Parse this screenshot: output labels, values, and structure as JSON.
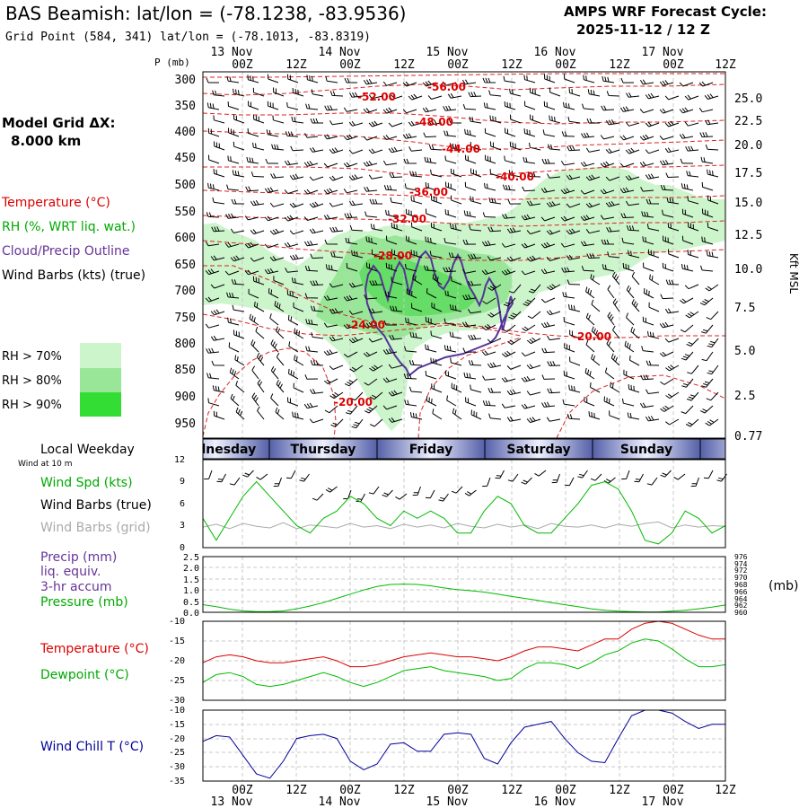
{
  "header": {
    "title": "BAS Beamish:  lat/lon = (-78.1238, -83.9536)",
    "grid_point": "Grid Point (584, 341) lat/lon = (-78.1013, -83.8319)",
    "cycle_label": "AMPS WRF Forecast Cycle:",
    "cycle_value": "2025-11-12 / 12  Z"
  },
  "sidebar": {
    "model_grid_label": "Model Grid ΔX:",
    "model_grid_value": "8.000 km",
    "temperature_label": "Temperature (°C)",
    "rh_label": "RH (%, WRT liq. wat.)",
    "cloud_label": "Cloud/Precip Outline",
    "wind_label": "Wind Barbs (kts) (true)",
    "rh70": "RH > 70%",
    "rh80": "RH > 80%",
    "rh90": "RH > 90%",
    "local_weekday": "Local Weekday",
    "wind_at_10m": "Wind at 10 m",
    "wind_spd": "Wind Spd (kts)",
    "wind_barbs_true": "Wind Barbs (true)",
    "wind_barbs_grid": "Wind Barbs (grid)",
    "precip": "Precip (mm)",
    "liq_equiv": "liq. equiv.",
    "accum": "3-hr accum",
    "pressure": "Pressure (mb)",
    "pressure_unit": "(mb)",
    "temperature2": "Temperature (°C)",
    "dewpoint": "Dewpoint (°C)",
    "windchill": "Wind Chill T (°C)"
  },
  "colors": {
    "temp": "#dd0000",
    "dew": "#00bb00",
    "rh70": "#ccf5cc",
    "rh80": "#99e699",
    "rh90": "#33dd33",
    "cloud": "#553399",
    "windchill": "#000099",
    "legend_purple": "#663399"
  },
  "chart_data": [
    {
      "type": "time-height cross-section",
      "p_axis_label": "P (mb)",
      "pressure_levels": [
        "300",
        "350",
        "400",
        "450",
        "500",
        "550",
        "600",
        "650",
        "700",
        "750",
        "800",
        "850",
        "900",
        "950"
      ],
      "height_label": "Kft MSL",
      "height_levels": [
        "25.0",
        "22.5",
        "20.0",
        "17.5",
        "15.0",
        "12.5",
        "10.0",
        "7.5",
        "5.0",
        "2.5",
        "0.77"
      ],
      "time_ticks": [
        "00Z",
        "12Z",
        "00Z",
        "12Z",
        "00Z",
        "12Z",
        "00Z",
        "12Z",
        "00Z",
        "12Z"
      ],
      "date_labels": [
        "13 Nov",
        "14 Nov",
        "15 Nov",
        "16 Nov",
        "17 Nov"
      ],
      "isotherm_labels": [
        "-56.00",
        "-52.00",
        "-48.00",
        "-44.00",
        "-40.00",
        "-36.00",
        "-32.00",
        "-28.00",
        "-24.00",
        "-20.00",
        "-20.00"
      ]
    },
    {
      "type": "weekday_bar",
      "days": [
        "Wednesday",
        "Thursday",
        "Friday",
        "Saturday",
        "Sunday"
      ]
    },
    {
      "type": "line",
      "title": "Wind Spd (kts)",
      "y_ticks": [
        "12",
        "9",
        "6",
        "3",
        "0"
      ],
      "ylim": [
        0,
        12
      ],
      "x_hours": [
        0,
        3,
        6,
        9,
        12,
        15,
        18,
        21,
        24,
        27,
        30,
        33,
        36,
        39,
        42,
        45,
        48,
        51,
        54,
        57,
        60,
        63,
        66,
        69,
        72,
        75,
        78,
        81,
        84,
        87,
        90,
        93,
        96,
        99,
        102,
        105,
        108,
        111,
        114,
        117
      ],
      "series": [
        {
          "name": "Wind Spd (kts)",
          "values": [
            4,
            1,
            4,
            7,
            9,
            7,
            5,
            3,
            2,
            4,
            5,
            7,
            6,
            4,
            3,
            5,
            4,
            5,
            4,
            2,
            2,
            5,
            7,
            6,
            3,
            2,
            2,
            4,
            6,
            8.5,
            9,
            8,
            5,
            1,
            0.5,
            2,
            5,
            4,
            2,
            3
          ]
        },
        {
          "name": "Wind Barbs (grid)",
          "values": [
            2.8,
            3.2,
            2.6,
            3.3,
            2.9,
            2.7,
            3.4,
            2.6,
            3.1,
            2.9,
            2.7,
            3.3,
            2.8,
            3,
            2.6,
            3.2,
            2.8,
            3.1,
            2.7,
            3.3,
            2.9,
            2.7,
            3.2,
            2.8,
            3.1,
            2.6,
            3.3,
            2.9,
            2.8,
            3.1,
            2.7,
            3.2,
            2.9,
            3.3,
            3.5,
            2.7,
            3.1,
            2.8,
            3,
            2.9
          ]
        }
      ]
    },
    {
      "type": "line",
      "title": "Precip / Pressure",
      "y_ticks": [
        "2.5",
        "2.0",
        "1.5",
        "1.0",
        "0.5",
        "0.0"
      ],
      "ylim": [
        0,
        2.5
      ],
      "right_ticks": [
        "976",
        "974",
        "972",
        "970",
        "968",
        "966",
        "964",
        "962",
        "960"
      ],
      "right_lim": [
        960,
        976
      ],
      "series": [
        {
          "name": "Precip (mm)",
          "values": [
            0,
            0,
            0,
            0,
            0,
            0,
            0,
            0,
            0,
            0,
            0,
            0,
            0,
            0,
            0,
            0,
            0,
            0,
            0,
            0,
            0,
            0,
            0,
            0,
            0,
            0,
            0,
            0,
            0,
            0,
            0,
            0,
            0,
            0,
            0,
            0,
            0,
            0,
            0,
            0
          ]
        },
        {
          "name": "Pressure (mb)",
          "values": [
            962.2,
            961.6,
            960.9,
            960.4,
            960.2,
            960.2,
            960.4,
            961.0,
            961.8,
            962.8,
            964.0,
            965.2,
            966.4,
            967.4,
            968.0,
            968.1,
            968.0,
            967.6,
            967.0,
            966.5,
            966.2,
            965.8,
            965.2,
            964.6,
            964.0,
            963.4,
            962.8,
            962.2,
            961.6,
            961.0,
            960.6,
            960.3,
            960.2,
            960.1,
            960.1,
            960.3,
            960.6,
            961.0,
            961.5,
            962.1
          ]
        }
      ]
    },
    {
      "type": "line",
      "title": "Temperature / Dewpoint",
      "y_ticks": [
        "-10",
        "-15",
        "-20",
        "-25",
        "-30"
      ],
      "ylim": [
        -30,
        -10
      ],
      "series": [
        {
          "name": "Temperature (°C)",
          "values": [
            -20.5,
            -19,
            -18.5,
            -19,
            -20,
            -20.5,
            -20.5,
            -20,
            -19.5,
            -19,
            -20,
            -21.5,
            -21.5,
            -21,
            -20,
            -19,
            -18.5,
            -18,
            -18.5,
            -19,
            -19,
            -19.5,
            -20,
            -19,
            -17.5,
            -16.5,
            -16.5,
            -17,
            -17.5,
            -16,
            -14.5,
            -14.5,
            -12,
            -10.5,
            -10,
            -10.5,
            -12,
            -13.5,
            -14.5,
            -14.5
          ]
        },
        {
          "name": "Dewpoint (°C)",
          "values": [
            -25.5,
            -23.5,
            -23,
            -24,
            -26,
            -26.5,
            -26,
            -25,
            -24,
            -23,
            -24,
            -25.5,
            -26.5,
            -25.5,
            -24,
            -22.5,
            -22,
            -21.5,
            -22.5,
            -23,
            -23.5,
            -24,
            -25,
            -24.5,
            -22,
            -20.5,
            -20.5,
            -21,
            -22,
            -20.5,
            -18.5,
            -17.5,
            -15.5,
            -14.5,
            -15,
            -17,
            -19.5,
            -21.5,
            -21.5,
            -21
          ]
        }
      ]
    },
    {
      "type": "line",
      "title": "Wind Chill T (°C)",
      "y_ticks": [
        "-10",
        "-15",
        "-20",
        "-25",
        "-30",
        "-35"
      ],
      "ylim": [
        -35,
        -10
      ],
      "series": [
        {
          "name": "Wind Chill T (°C)",
          "values": [
            -21,
            -19,
            -19.5,
            -26,
            -32.5,
            -34,
            -28,
            -20,
            -19,
            -18.5,
            -20,
            -28,
            -31,
            -29,
            -22,
            -21.5,
            -24.5,
            -24.5,
            -18.5,
            -18,
            -18.5,
            -27,
            -29,
            -21.5,
            -16,
            -15,
            -14,
            -20,
            -25,
            -28,
            -28.5,
            -20,
            -12,
            -10,
            -10,
            -11,
            -14,
            -16.5,
            -15,
            -15
          ]
        }
      ]
    }
  ]
}
